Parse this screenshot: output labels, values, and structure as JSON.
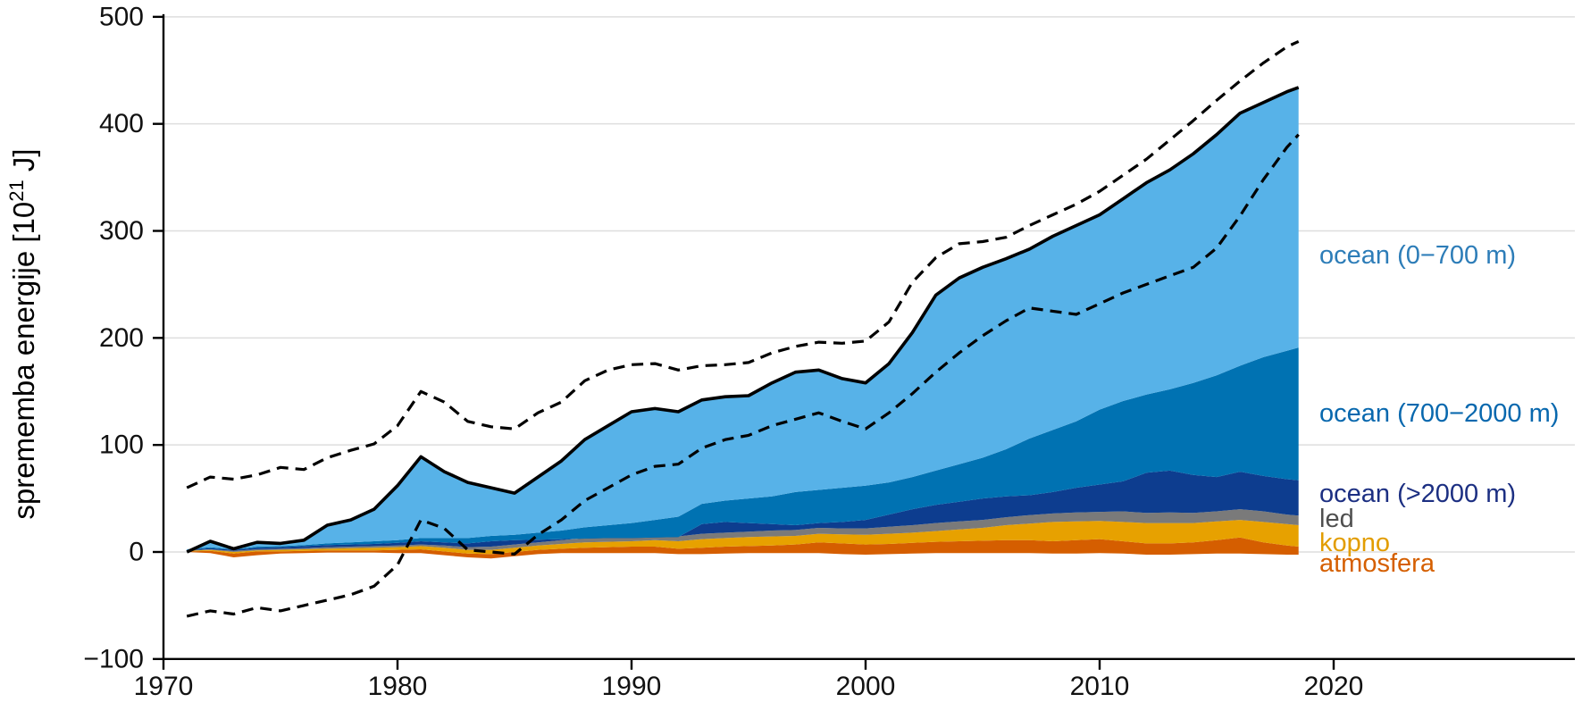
{
  "figure": {
    "background": "#ffffff",
    "ylabel": {
      "prefix": "sprememba energije [10",
      "superscript": "21",
      "suffix": " J]"
    },
    "axes": {
      "x_ticks": [
        {
          "v": 1970,
          "label": "1970"
        },
        {
          "v": 1980,
          "label": "1980"
        },
        {
          "v": 1990,
          "label": "1990"
        },
        {
          "v": 2000,
          "label": "2000"
        },
        {
          "v": 2010,
          "label": "2010"
        },
        {
          "v": 2020,
          "label": "2020"
        }
      ],
      "y_ticks": [
        {
          "v": -100,
          "label": "−100"
        },
        {
          "v": 0,
          "label": "0"
        },
        {
          "v": 100,
          "label": "100"
        },
        {
          "v": 200,
          "label": "200"
        },
        {
          "v": 300,
          "label": "300"
        },
        {
          "v": 400,
          "label": "400"
        },
        {
          "v": 500,
          "label": "500"
        }
      ],
      "gridline_values": [
        0,
        100,
        200,
        300,
        400,
        500
      ],
      "axis_color": "#000000",
      "grid_color": "#dedede",
      "tick_label_color": "#111111"
    },
    "legend": [
      {
        "label": "ocean (0−700 m)",
        "color": "#2d7db8"
      },
      {
        "label": "ocean (700−2000 m)",
        "color": "#0868ae"
      },
      {
        "label": "ocean (>2000 m)",
        "color": "#1c2f82"
      },
      {
        "label": "led",
        "color": "#4f4f4f"
      },
      {
        "label": "kopno",
        "color": "#e29d00"
      },
      {
        "label": "atmosfera",
        "color": "#d55f00"
      }
    ]
  },
  "chart_data": {
    "type": "area",
    "stacked": true,
    "title": "",
    "xlabel": "",
    "ylabel": "sprememba energije [10^21 J]",
    "xlim": [
      1970,
      2030
    ],
    "ylim": [
      -100,
      500
    ],
    "grid": true,
    "legend_position": "right",
    "x": [
      1971,
      1972,
      1973,
      1974,
      1975,
      1976,
      1977,
      1978,
      1979,
      1980,
      1981,
      1982,
      1983,
      1984,
      1985,
      1986,
      1987,
      1988,
      1989,
      1990,
      1991,
      1992,
      1993,
      1994,
      1995,
      1996,
      1997,
      1998,
      1999,
      2000,
      2001,
      2002,
      2003,
      2004,
      2005,
      2006,
      2007,
      2008,
      2009,
      2010,
      2011,
      2012,
      2013,
      2014,
      2015,
      2016,
      2017,
      2018,
      2018.5
    ],
    "stack_note": "boundaries are cumulative tops of the stacked areas, in 10^21 J; each layer fills between the previous boundary and its own",
    "boundaries": {
      "base": [
        0,
        -1,
        -5,
        -3,
        -1.5,
        -1,
        -0.5,
        -0.5,
        -0.5,
        -1,
        -1,
        -3,
        -5,
        -6,
        -4,
        -2,
        -1,
        -1,
        -1,
        -1,
        -1,
        -2,
        -2,
        -1.5,
        -1,
        -1,
        -1,
        -1,
        -2,
        -2.5,
        -2,
        -1.5,
        -1,
        -1,
        -1,
        -1,
        -1,
        -1.5,
        -1.5,
        -1,
        -1.5,
        -2.5,
        -2.5,
        -2,
        -1.5,
        -1.5,
        -2,
        -2.5,
        -2.5
      ],
      "atmosfera_top": [
        0.5,
        1,
        -1.5,
        0.5,
        0.5,
        1,
        1.5,
        1.5,
        1.5,
        2,
        2.5,
        0.5,
        -1.5,
        -2,
        0,
        2,
        3,
        4,
        4.5,
        5,
        5,
        3,
        4,
        5,
        5.5,
        6,
        7,
        9,
        8,
        7,
        7.5,
        8.5,
        9.5,
        10,
        10.5,
        11,
        11,
        10,
        11,
        12,
        10,
        8,
        8,
        9,
        11,
        13.5,
        9,
        6,
        5
      ],
      "kopno_top": [
        1,
        2,
        0,
        1.5,
        2,
        2.5,
        3,
        3.5,
        4,
        4.5,
        5.5,
        4,
        2,
        2,
        4,
        6,
        7.5,
        9,
        9.5,
        10,
        11,
        10,
        12,
        13,
        14,
        14.5,
        15,
        17,
        16.5,
        16,
        17,
        18,
        19.5,
        21,
        22.5,
        25,
        26.5,
        28,
        28.5,
        29,
        28,
        27,
        27,
        27,
        28.5,
        30,
        28,
        26,
        25
      ],
      "led_top": [
        1.5,
        2.5,
        1,
        2.5,
        3,
        3.5,
        4.5,
        5,
        5.5,
        6,
        7,
        6,
        4.5,
        5,
        7,
        9,
        11,
        13,
        13.5,
        14,
        15,
        14.5,
        17,
        18,
        19,
        20,
        20.5,
        22.5,
        22,
        22,
        23.5,
        25,
        27,
        28.5,
        30,
        32.5,
        34.5,
        36,
        37,
        37.5,
        38,
        36.5,
        37,
        36.5,
        38,
        40,
        38,
        35,
        34
      ],
      "ocean_deep_top": [
        2,
        3.5,
        2,
        4,
        4.5,
        5.5,
        6.5,
        7,
        7.5,
        8.5,
        10,
        9,
        8,
        10,
        11,
        11.5,
        12,
        12.5,
        13,
        13,
        13.5,
        14,
        26,
        28,
        27,
        26,
        25,
        27,
        28,
        30,
        35,
        40,
        44,
        47,
        50,
        52,
        53,
        56,
        60,
        63,
        66,
        74,
        76,
        72,
        70,
        75,
        71,
        68,
        67
      ],
      "ocean_mid_top": [
        2.5,
        4.5,
        2.5,
        5,
        5.5,
        6.5,
        8,
        9,
        10,
        11,
        13,
        13,
        13,
        15,
        16,
        18,
        20,
        23,
        25,
        27,
        30,
        33,
        45,
        48,
        50,
        52,
        56,
        58,
        60,
        62,
        65,
        70,
        76,
        82,
        88,
        96,
        106,
        114,
        122,
        133,
        141,
        147,
        152,
        158,
        165,
        174,
        182,
        188,
        191
      ],
      "total_top": [
        0,
        10,
        3,
        9,
        8,
        11,
        25,
        30,
        40,
        62,
        89,
        75,
        65,
        60,
        55,
        70,
        85,
        105,
        118,
        131,
        134,
        131,
        142,
        145,
        146,
        158,
        168,
        170,
        162,
        158,
        176,
        205,
        240,
        256,
        266,
        274,
        283,
        295,
        305,
        315,
        330,
        345,
        357,
        372,
        390,
        410,
        420,
        430,
        434
      ]
    },
    "layers": [
      {
        "name": "atmosfera",
        "color": "#d55e00",
        "from": "base",
        "to": "atmosfera_top"
      },
      {
        "name": "kopno",
        "color": "#e7a100",
        "from": "atmosfera_top",
        "to": "kopno_top"
      },
      {
        "name": "led",
        "color": "#7a7a7a",
        "from": "kopno_top",
        "to": "led_top"
      },
      {
        "name": "ocean->2000m",
        "color": "#0d3d8f",
        "from": "led_top",
        "to": "ocean_deep_top"
      },
      {
        "name": "ocean-700-2000m",
        "color": "#0072b2",
        "from": "ocean_deep_top",
        "to": "ocean_mid_top"
      },
      {
        "name": "ocean-0-700m",
        "color": "#57b2e8",
        "from": "ocean_mid_top",
        "to": "total_top"
      }
    ],
    "lines": {
      "total": {
        "style": "solid",
        "color": "#000000",
        "values_key": "total_top"
      },
      "upper_bound": {
        "style": "dashed",
        "color": "#000000",
        "values": [
          60,
          70,
          68,
          72,
          79,
          77,
          88,
          95,
          101,
          118,
          150,
          140,
          122,
          117,
          115,
          130,
          140,
          160,
          170,
          175,
          176,
          170,
          174,
          175,
          177,
          186,
          192,
          196,
          195,
          197,
          215,
          252,
          275,
          288,
          290,
          294,
          305,
          315,
          325,
          337,
          352,
          367,
          385,
          403,
          422,
          440,
          457,
          472,
          477
        ]
      },
      "lower_bound": {
        "style": "dashed",
        "color": "#000000",
        "values": [
          -60,
          -55,
          -58,
          -52,
          -55,
          -50,
          -45,
          -40,
          -32,
          -12,
          30,
          22,
          2,
          0,
          -2,
          16,
          30,
          48,
          60,
          72,
          80,
          82,
          97,
          105,
          109,
          118,
          124,
          130,
          122,
          115,
          130,
          148,
          168,
          186,
          202,
          216,
          228,
          225,
          222,
          232,
          242,
          250,
          258,
          266,
          284,
          314,
          348,
          378,
          390
        ]
      }
    }
  }
}
